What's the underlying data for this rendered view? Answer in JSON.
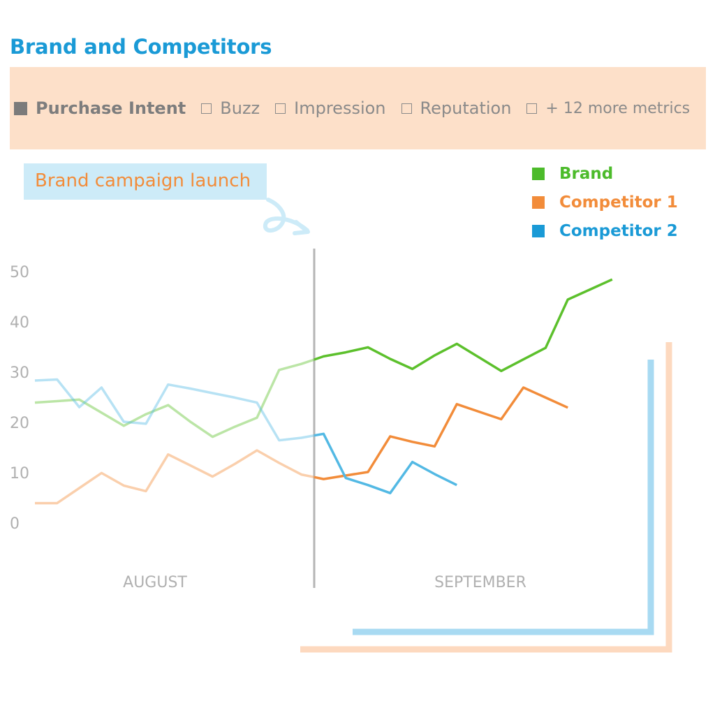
{
  "title": "Brand and Competitors",
  "metrics": [
    {
      "label": "Purchase Intent",
      "checked": true
    },
    {
      "label": "Buzz",
      "checked": false
    },
    {
      "label": "Impression",
      "checked": false
    },
    {
      "label": "Reputation",
      "checked": false
    },
    {
      "label": "+ 12 more metrics",
      "checked": false
    }
  ],
  "annotation": "Brand campaign launch",
  "legend": [
    {
      "name": "Brand",
      "color": "#4cbb2b"
    },
    {
      "name": "Competitor 1",
      "color": "#f28c3a"
    },
    {
      "name": "Competitor 2",
      "color": "#1a9ad6"
    }
  ],
  "chart_data": {
    "type": "line",
    "ylim": [
      0,
      50
    ],
    "yticks": [
      0,
      10,
      20,
      30,
      40,
      50
    ],
    "x_sections": [
      "AUGUST",
      "SEPTEMBER"
    ],
    "x": [
      0,
      1,
      2,
      3,
      4,
      5,
      6,
      7,
      8,
      9,
      10,
      11,
      12,
      13,
      14,
      15,
      16,
      17,
      18,
      19,
      20,
      21,
      22,
      23,
      24,
      25,
      26,
      27,
      28,
      29
    ],
    "series": [
      {
        "name": "Brand",
        "color": "#5cc02c",
        "values": [
          23.8,
          24.1,
          24.4,
          null,
          19.2,
          21.5,
          23.3,
          20.0,
          17.0,
          19.0,
          20.8,
          30.3,
          31.5,
          33.0,
          33.8,
          34.8,
          32.5,
          30.5,
          33.2,
          35.5,
          32.8,
          30.1,
          32.4,
          34.7,
          44.3,
          46.3,
          48.3,
          null,
          null,
          null
        ]
      },
      {
        "name": "Competitor 1",
        "color": "#f28c3a",
        "values": [
          3.8,
          3.8,
          6.8,
          9.8,
          7.3,
          6.2,
          13.5,
          11.3,
          9.1,
          11.6,
          14.3,
          11.8,
          9.5,
          8.6,
          9.3,
          10.0,
          17.1,
          16.0,
          15.1,
          23.5,
          22.0,
          20.5,
          26.8,
          24.8,
          22.8,
          null,
          null,
          null,
          null,
          null
        ]
      },
      {
        "name": "Competitor 2",
        "color": "#53b9e4",
        "values": [
          28.2,
          28.4,
          22.9,
          26.8,
          20.0,
          19.6,
          27.4,
          26.6,
          25.7,
          24.8,
          23.8,
          16.3,
          16.8,
          17.6,
          8.8,
          7.4,
          5.8,
          12.0,
          9.6,
          7.4,
          null,
          null,
          null,
          null,
          null,
          null,
          null,
          null,
          null,
          null
        ]
      }
    ],
    "x_norm_note": ""
  }
}
